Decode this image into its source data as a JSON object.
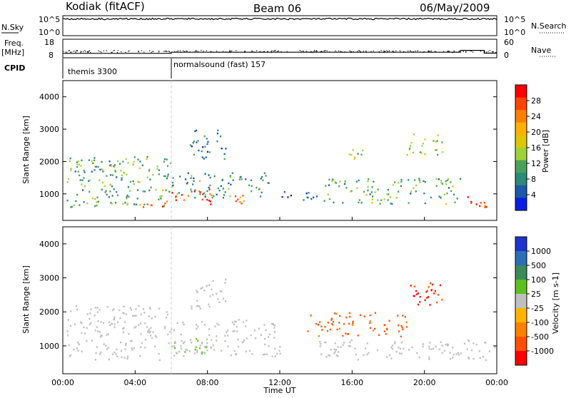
{
  "header": {
    "site": "Kodiak (fitACF)",
    "beam": "Beam 06",
    "date": "06/May/2009"
  },
  "top_panel": {
    "left_label": "N.Sky",
    "left_ticks": [
      "10^5",
      "10^0"
    ],
    "right_label": "N.Search",
    "right_ticks": [
      "10^5",
      "10^0"
    ]
  },
  "freq_panel": {
    "left_label_line1": "Freq.",
    "left_label_line2": "[MHz]",
    "left_ticks": [
      "18",
      "8"
    ],
    "right_label": "Nave",
    "right_ticks": [
      "60",
      "0"
    ]
  },
  "cpid": {
    "label": "CPID",
    "segments": [
      {
        "start_hour": 0,
        "text": "themis 3300"
      },
      {
        "start_hour": 6,
        "text": "normalsound (fast) 157"
      }
    ]
  },
  "x_axis": {
    "label": "Time UT",
    "ticks": [
      "00:00",
      "04:00",
      "08:00",
      "12:00",
      "16:00",
      "20:00",
      "00:00"
    ],
    "tick_hours": [
      0,
      4,
      8,
      12,
      16,
      20,
      24
    ]
  },
  "panels": {
    "power": {
      "ylabel": "Slant Range [km]",
      "yticks": [
        "4000",
        "3000",
        "2000",
        "1000"
      ],
      "colorbar_label": "Power [dB]",
      "colorbar_ticks": [
        "28",
        "24",
        "20",
        "16",
        "12",
        "8",
        "4"
      ],
      "colorbar_colors": [
        "#ff0000",
        "#ff4400",
        "#ff8000",
        "#ffb000",
        "#dcc800",
        "#9ed23a",
        "#4aa25a",
        "#2c8a7a",
        "#1a5aa8",
        "#0a1ee0"
      ]
    },
    "velocity": {
      "ylabel": "Slant Range [km]",
      "yticks": [
        "4000",
        "3000",
        "2000",
        "1000"
      ],
      "colorbar_label": "Velocity [m s-1]",
      "colorbar_ticks": [
        "1000",
        "500",
        "100",
        "25",
        "-25",
        "-100",
        "-500",
        "-1000"
      ],
      "colorbar_colors": [
        "#2233cc",
        "#2a6fb8",
        "#3a8a5a",
        "#5ec020",
        "#bfbfbf",
        "#ffb400",
        "#ff8000",
        "#ff5000",
        "#ff0000"
      ]
    }
  },
  "chart_data": {
    "type": "heatmap",
    "title": "Kodiak (fitACF) Beam 06 06/May/2009",
    "xlabel": "Time UT",
    "ylabel": "Slant Range [km]",
    "x_range_hours": [
      0,
      24
    ],
    "y_range_km": [
      180,
      4500
    ],
    "grid": false,
    "nsky_log10_level": 4.2,
    "freq_mhz": [
      {
        "start_hour": 0,
        "end_hour": 6,
        "value": 10.4
      },
      {
        "start_hour": 6,
        "end_hour": 22,
        "value": 11.0
      },
      {
        "start_hour": 22,
        "end_hour": 23.3,
        "value": 12.0
      },
      {
        "start_hour": 23.3,
        "end_hour": 24,
        "value": 10.5
      }
    ],
    "power_regions": [
      {
        "t0": 0.2,
        "t1": 6.0,
        "r0": 600,
        "r1": 2200,
        "db": 12
      },
      {
        "t0": 0.5,
        "t1": 4.0,
        "r0": 1850,
        "r1": 2050,
        "db": 14
      },
      {
        "t0": 4.0,
        "t1": 6.0,
        "r0": 600,
        "r1": 800,
        "db": 28
      },
      {
        "t0": 6.0,
        "t1": 8.3,
        "r0": 700,
        "r1": 1200,
        "db": 28
      },
      {
        "t0": 8.3,
        "t1": 10.0,
        "r0": 700,
        "r1": 1000,
        "db": 24
      },
      {
        "t0": 6.0,
        "t1": 11.5,
        "r0": 900,
        "r1": 1700,
        "db": 10
      },
      {
        "t0": 7.0,
        "t1": 9.0,
        "r0": 2100,
        "r1": 3000,
        "db": 8
      },
      {
        "t0": 12.0,
        "t1": 14.5,
        "r0": 800,
        "r1": 1100,
        "db": 6
      },
      {
        "t0": 14.5,
        "t1": 22.0,
        "r0": 700,
        "r1": 1500,
        "db": 12
      },
      {
        "t0": 15.5,
        "t1": 17.0,
        "r0": 2100,
        "r1": 2400,
        "db": 14
      },
      {
        "t0": 19.0,
        "t1": 21.0,
        "r0": 2200,
        "r1": 2900,
        "db": 16
      },
      {
        "t0": 22.0,
        "t1": 23.5,
        "r0": 600,
        "r1": 1000,
        "db": 28
      }
    ],
    "velocity_regions": [
      {
        "t0": 0.2,
        "t1": 6.0,
        "r0": 600,
        "r1": 2200,
        "v": 0
      },
      {
        "t0": 6.0,
        "t1": 8.0,
        "r0": 700,
        "r1": 1300,
        "v": 120
      },
      {
        "t0": 7.0,
        "t1": 9.0,
        "r0": 2100,
        "r1": 3000,
        "v": 0
      },
      {
        "t0": 6.0,
        "t1": 12.0,
        "r0": 700,
        "r1": 1800,
        "v": 0
      },
      {
        "t0": 13.5,
        "t1": 19.0,
        "r0": 1300,
        "r1": 2000,
        "v": -400
      },
      {
        "t0": 19.0,
        "t1": 21.0,
        "r0": 2200,
        "r1": 3000,
        "v": -700
      },
      {
        "t0": 14.0,
        "t1": 24.0,
        "r0": 600,
        "r1": 1200,
        "v": 0
      }
    ]
  }
}
